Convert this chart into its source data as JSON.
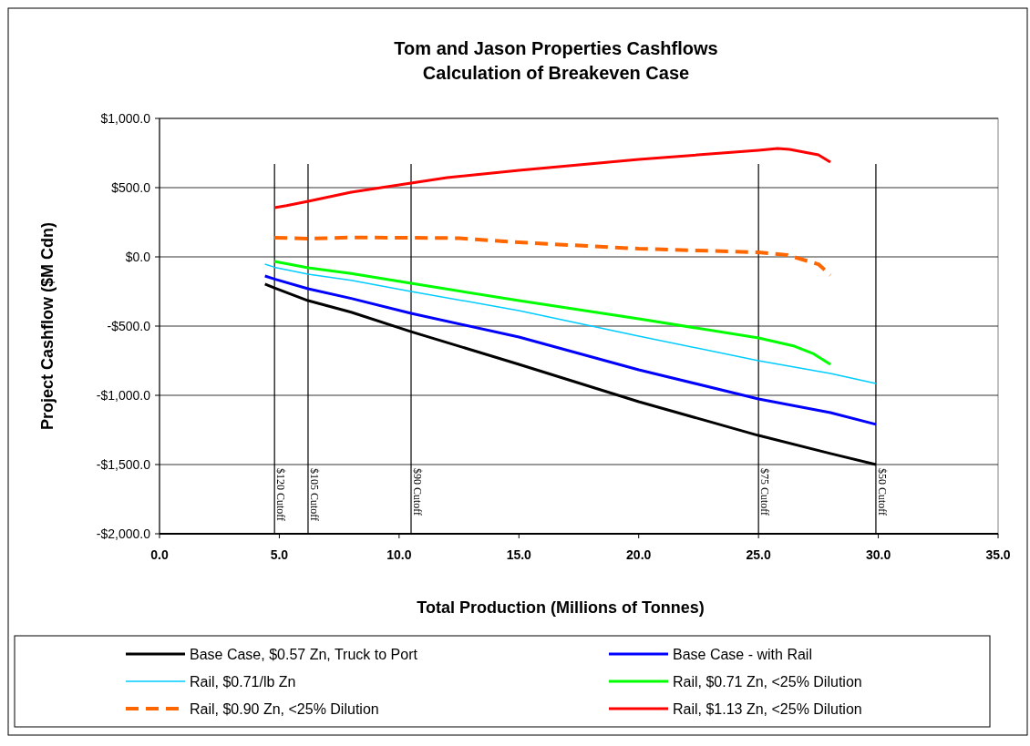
{
  "chart_data": {
    "type": "line",
    "title": "Tom and Jason Properties Cashflows\nCalculation of Breakeven Case",
    "xlabel": "Total Production (Millions of Tonnes)",
    "ylabel": "Project Cashflow ($M Cdn)",
    "xlim": [
      0,
      35
    ],
    "xticks": [
      {
        "value": 0,
        "label": "0.0"
      },
      {
        "value": 5,
        "label": "5.0"
      },
      {
        "value": 10,
        "label": "10.0"
      },
      {
        "value": 15,
        "label": "15.0"
      },
      {
        "value": 20,
        "label": "20.0"
      },
      {
        "value": 25,
        "label": "25.0"
      },
      {
        "value": 30,
        "label": "30.0"
      },
      {
        "value": 35,
        "label": "35.0"
      }
    ],
    "ylim": [
      -2000,
      1000
    ],
    "yticks": [
      {
        "value": -2000,
        "label": "-$2,000.0"
      },
      {
        "value": -1500,
        "label": "-$1,500.0"
      },
      {
        "value": -1000,
        "label": "-$1,000.0"
      },
      {
        "value": -500,
        "label": "-$500.0"
      },
      {
        "value": 0,
        "label": "$0.0"
      },
      {
        "value": 500,
        "label": "$500.0"
      },
      {
        "value": 1000,
        "label": "$1,000.0"
      }
    ],
    "grid": "y",
    "legend": "bottom",
    "marker": "none",
    "series": [
      {
        "name": "Base Case, $0.57 Zn, Truck to Port",
        "color": "#000000",
        "x": [
          4.4,
          4.8,
          6.2,
          8,
          10.5,
          15,
          20,
          25,
          28,
          29.9
        ],
        "values": [
          -197,
          -225,
          -316,
          -400,
          -540,
          -776,
          -1046,
          -1290,
          -1420,
          -1500
        ]
      },
      {
        "name": "Base Case - with Rail",
        "color": "#0000ff",
        "x": [
          4.4,
          4.8,
          6.2,
          8,
          10.5,
          15,
          20,
          25,
          28,
          29.9
        ],
        "values": [
          -138,
          -160,
          -230,
          -300,
          -408,
          -579,
          -816,
          -1026,
          -1125,
          -1210
        ]
      },
      {
        "name": "Rail, $0.71/lb Zn",
        "color": "#00ccff",
        "x": [
          4.4,
          4.8,
          6.2,
          8,
          10.5,
          15,
          20,
          25,
          28,
          29.9
        ],
        "values": [
          -53,
          -75,
          -125,
          -170,
          -250,
          -388,
          -572,
          -750,
          -842,
          -915
        ]
      },
      {
        "name": "Rail, $0.71 Zn, <25% Dilution",
        "color": "#00ff00",
        "x": [
          4.8,
          6.2,
          8,
          10.5,
          15,
          20,
          25,
          26.5,
          27.3,
          28
        ],
        "values": [
          -33,
          -79,
          -120,
          -191,
          -316,
          -447,
          -586,
          -645,
          -700,
          -776
        ]
      },
      {
        "name": "Rail, $0.90 Zn, <25% Dilution",
        "color": "#ff6600",
        "line_style": "dashed",
        "x": [
          4.8,
          6.2,
          8,
          10.5,
          12.5,
          15,
          20,
          25,
          26.2,
          27.5,
          28
        ],
        "values": [
          138,
          132,
          140,
          138,
          135,
          105,
          59,
          33,
          13,
          -53,
          -132
        ]
      },
      {
        "name": "Rail, $1.13 Zn, <25% Dilution",
        "color": "#ff0000",
        "x": [
          4.8,
          5.3,
          6.2,
          8,
          10.5,
          12,
          15,
          20,
          25,
          25.8,
          26.3,
          27.5,
          28
        ],
        "values": [
          355,
          370,
          401,
          467,
          533,
          572,
          625,
          704,
          770,
          783,
          776,
          737,
          684
        ]
      }
    ],
    "ref_lines": [
      {
        "axis": "x",
        "value": 4.8,
        "label": "$120 Cutoff"
      },
      {
        "axis": "x",
        "value": 6.2,
        "label": "$105 Cutoff"
      },
      {
        "axis": "x",
        "value": 10.5,
        "label": "$90 Cutoff"
      },
      {
        "axis": "x",
        "value": 25,
        "label": "$75 Cutoff"
      },
      {
        "axis": "x",
        "value": 29.9,
        "label": "$50 Cutoff"
      }
    ]
  }
}
